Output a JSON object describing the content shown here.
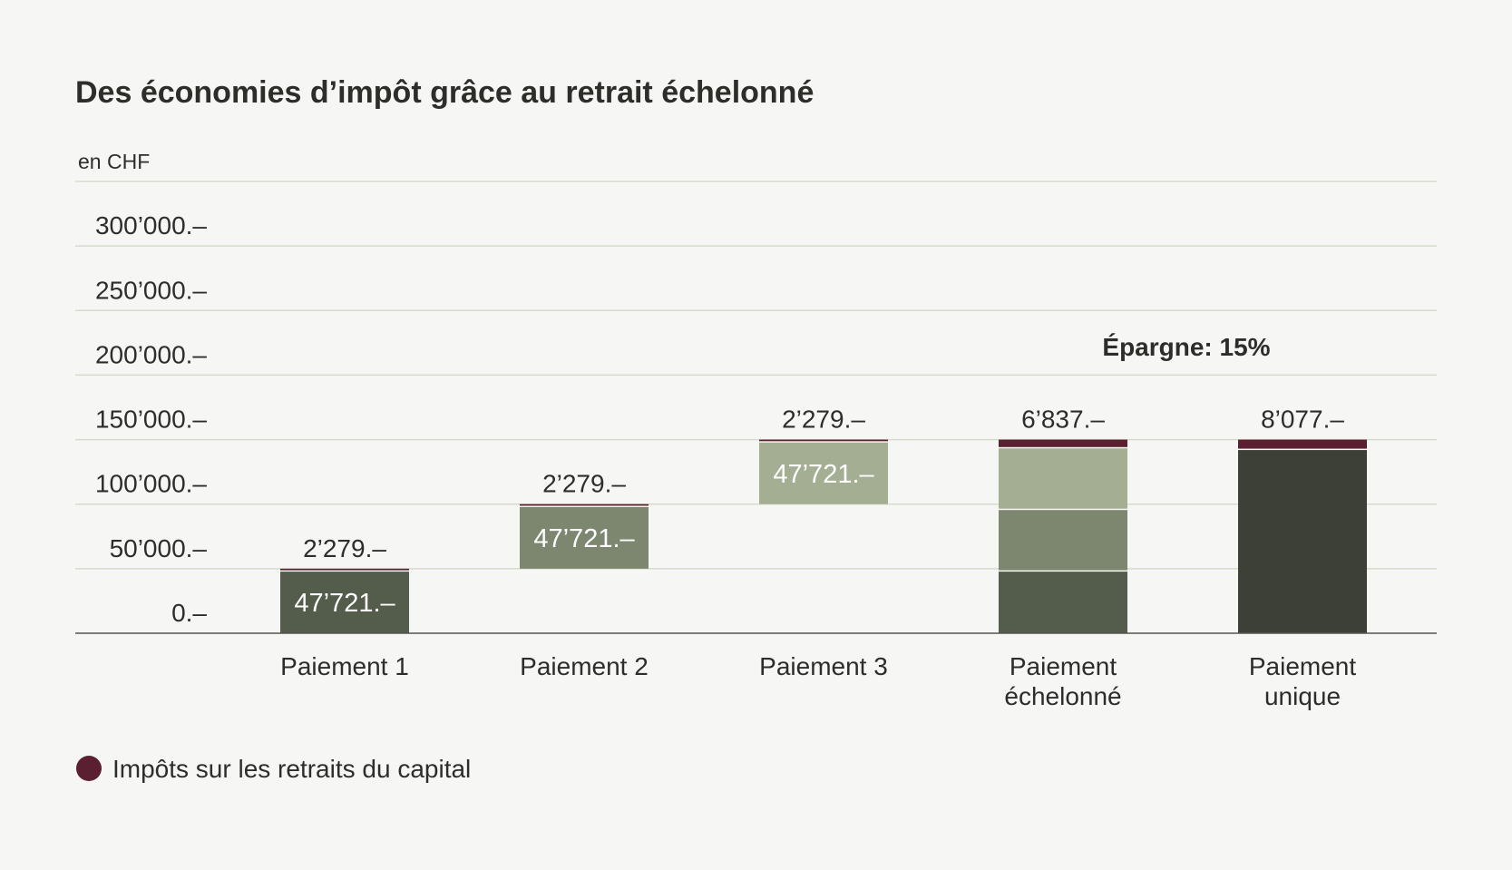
{
  "title": "Des économies d’impôt grâce au retrait échelonné",
  "unit_label": "en CHF",
  "annotation": "Épargne: 15%",
  "legend": {
    "label": "Impôts sur les retraits du capital",
    "color": "#5a1f30"
  },
  "colors": {
    "tax": "#5a1f30",
    "payment_1": "#545c4b",
    "payment_2": "#7d8770",
    "payment_3": "#a3ae92",
    "single": "#3c4036",
    "grid": "#d5dccb",
    "baseline": "#555555"
  },
  "chart_data": {
    "type": "bar",
    "title": "Des économies d’impôt grâce au retrait échelonné",
    "ylabel": "en CHF",
    "ylim": [
      0,
      350000
    ],
    "y_ticks": [
      0,
      50000,
      100000,
      150000,
      200000,
      250000,
      300000
    ],
    "y_tick_labels": [
      "0.–",
      "50’000.–",
      "100’000.–",
      "150’000.–",
      "200’000.–",
      "250’000.–",
      "300’000.–"
    ],
    "grid": true,
    "legend_position": "bottom-left",
    "categories": [
      {
        "label_lines": [
          "Paiement 1"
        ]
      },
      {
        "label_lines": [
          "Paiement 2"
        ]
      },
      {
        "label_lines": [
          "Paiement 3"
        ]
      },
      {
        "label_lines": [
          "Paiement",
          "échelonné"
        ]
      },
      {
        "label_lines": [
          "Paiement",
          "unique"
        ]
      }
    ],
    "bars": [
      {
        "segments": [
          {
            "value": 47721,
            "color_key": "payment_1",
            "label": "47’721.–"
          },
          {
            "value": 2279,
            "color_key": "tax"
          }
        ],
        "offset": 0,
        "top_label": "2’279.–"
      },
      {
        "segments": [
          {
            "value": 47721,
            "color_key": "payment_2",
            "label": "47’721.–"
          },
          {
            "value": 2279,
            "color_key": "tax"
          }
        ],
        "offset": 50000,
        "top_label": "2’279.–"
      },
      {
        "segments": [
          {
            "value": 47721,
            "color_key": "payment_3",
            "label": "47’721.–"
          },
          {
            "value": 2279,
            "color_key": "tax"
          }
        ],
        "offset": 100000,
        "top_label": "2’279.–"
      },
      {
        "segments": [
          {
            "value": 47721,
            "color_key": "payment_1"
          },
          {
            "value": 47721,
            "color_key": "payment_2"
          },
          {
            "value": 47721,
            "color_key": "payment_3"
          },
          {
            "value": 6837,
            "color_key": "tax"
          }
        ],
        "offset": 0,
        "top_label": "6’837.–"
      },
      {
        "segments": [
          {
            "value": 141923,
            "color_key": "single"
          },
          {
            "value": 8077,
            "color_key": "tax"
          }
        ],
        "offset": 0,
        "top_label": "8’077.–"
      }
    ]
  }
}
